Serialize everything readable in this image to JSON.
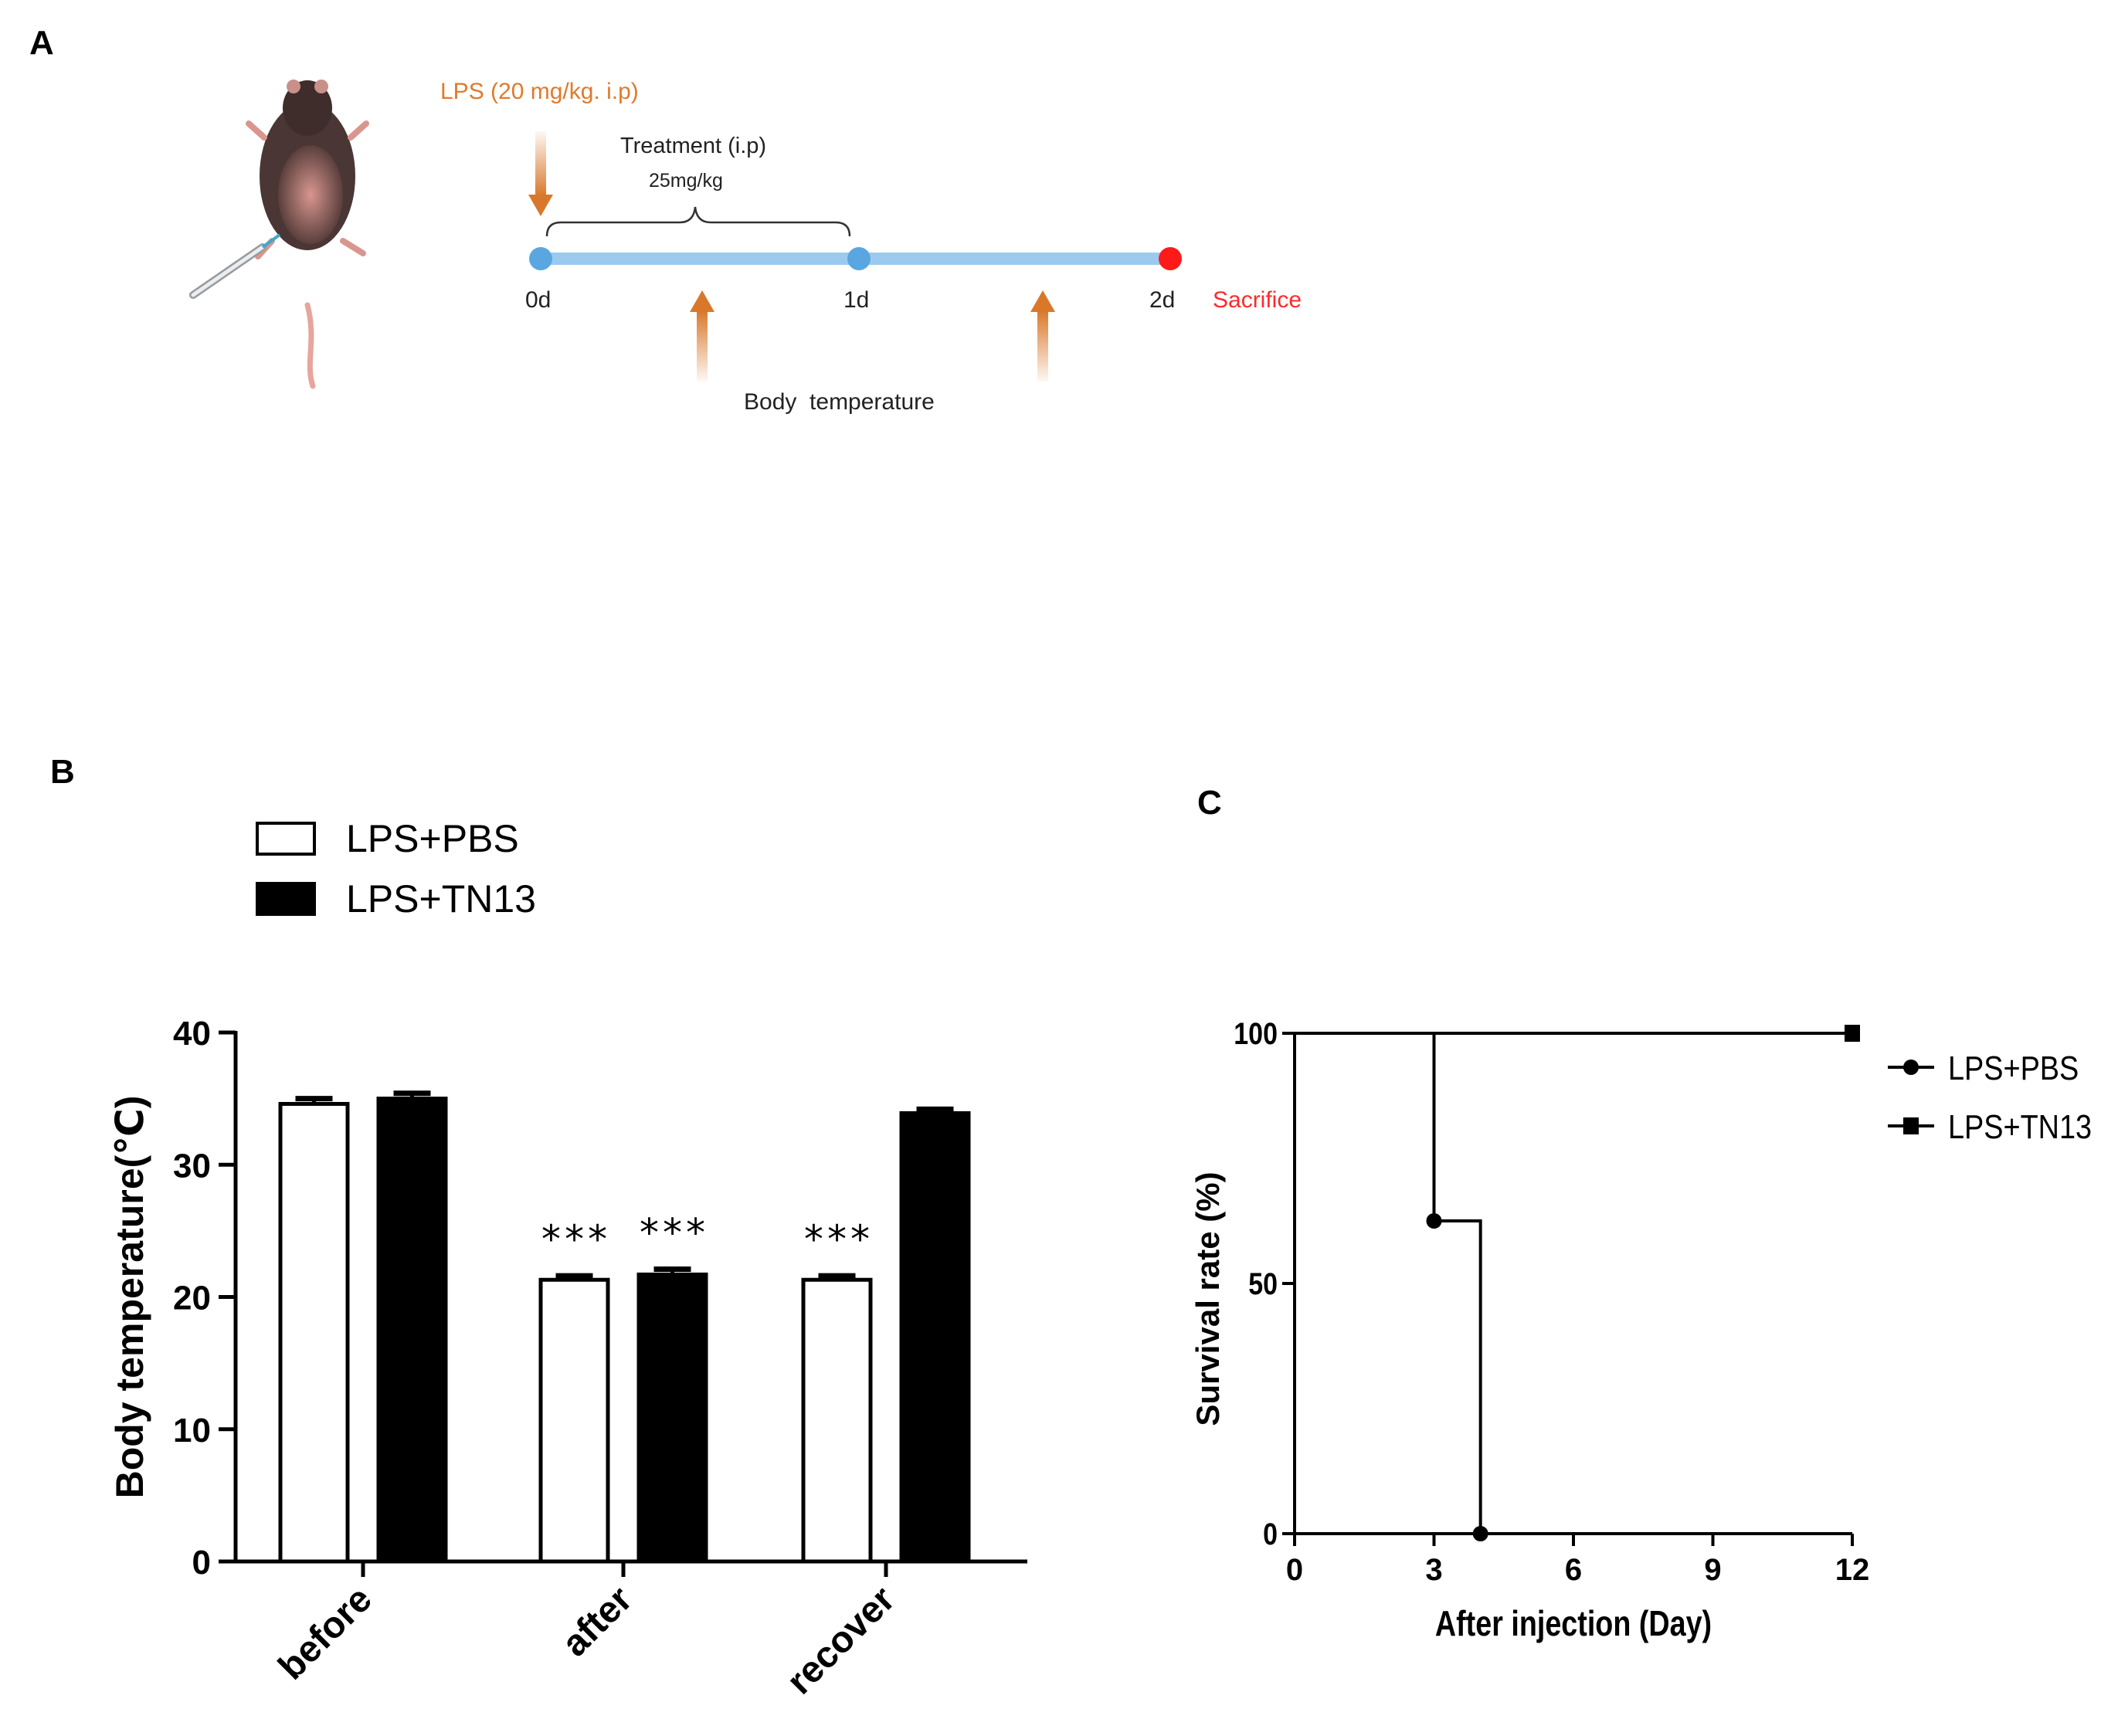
{
  "panel_labels": {
    "a": "A",
    "b": "B",
    "c": "C"
  },
  "colors": {
    "lps_orange": "#e07a2c",
    "arrow_orange": "#d9782b",
    "timeline_blue": "#9ccaee",
    "node_blue": "#5aa6e0",
    "node_red": "#ff1a1a",
    "sacrifice_red": "#ff2a2a",
    "black": "#000000",
    "white": "#ffffff"
  },
  "schematic": {
    "lps_label": "LPS (20 mg/kg. i.p)",
    "treatment_label": "Treatment (i.p)",
    "dose_label": "25mg/kg",
    "day_labels": [
      "0d",
      "1d",
      "2d"
    ],
    "sacrifice_label": "Sacrifice",
    "body_temp_label": "Body  temperature",
    "icons": [
      "mouse-icon",
      "syringe-icon"
    ]
  },
  "chart_data": [
    {
      "id": "B",
      "type": "bar",
      "title": "",
      "xlabel": "",
      "ylabel": "Body temperature(℃)",
      "categories": [
        "before",
        "after",
        "recover"
      ],
      "series": [
        {
          "name": "LPS+PBS",
          "fill": "white",
          "values": [
            34.6,
            21.3,
            21.3
          ],
          "errors": [
            0.4,
            0.3,
            0.3
          ]
        },
        {
          "name": "LPS+TN13",
          "fill": "black",
          "values": [
            35.0,
            21.7,
            33.9
          ],
          "errors": [
            0.4,
            0.4,
            0.3
          ]
        }
      ],
      "significance": [
        {
          "category": "after",
          "series": "LPS+PBS",
          "label": "***"
        },
        {
          "category": "after",
          "series": "LPS+TN13",
          "label": "***"
        },
        {
          "category": "recover",
          "series": "LPS+PBS",
          "label": "***"
        }
      ],
      "ylim": [
        0,
        40
      ],
      "yticks": [
        0,
        10,
        20,
        30,
        40
      ],
      "legend": "top-left",
      "grid": false
    },
    {
      "id": "C",
      "type": "line",
      "step": true,
      "title": "",
      "xlabel": "After injection (Day)",
      "ylabel": "Survival rate (%)",
      "xlim": [
        0,
        12
      ],
      "ylim": [
        0,
        100
      ],
      "xticks": [
        0,
        3,
        6,
        9,
        12
      ],
      "yticks": [
        0,
        50,
        100
      ],
      "series": [
        {
          "name": "LPS+PBS",
          "marker": "circle",
          "x": [
            0,
            3,
            3,
            4,
            4,
            12
          ],
          "y": [
            100,
            100,
            62.5,
            62.5,
            0,
            0
          ],
          "markers": [
            [
              3,
              62.5
            ],
            [
              4,
              0
            ]
          ]
        },
        {
          "name": "LPS+TN13",
          "marker": "square",
          "x": [
            0,
            12
          ],
          "y": [
            100,
            100
          ],
          "markers": [
            [
              12,
              100
            ]
          ]
        }
      ],
      "legend": "right",
      "grid": false
    }
  ]
}
